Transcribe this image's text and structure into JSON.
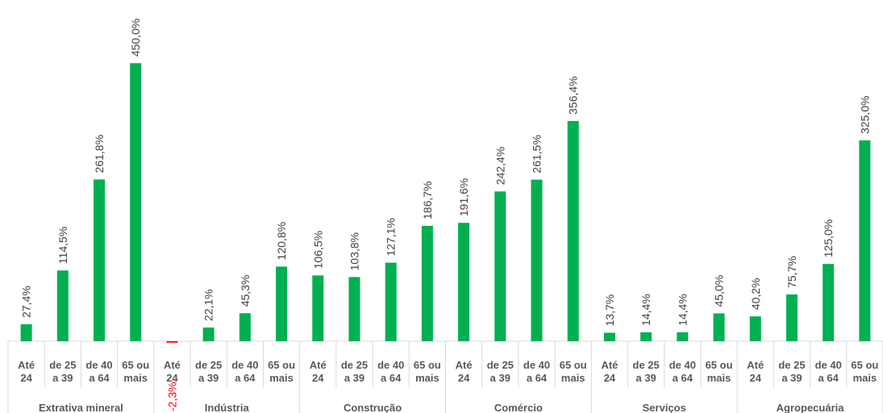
{
  "chart_data": {
    "type": "bar",
    "groups": [
      "Extrativa mineral",
      "Indústria",
      "Construção",
      "Comércio",
      "Serviços",
      "Agropecuária"
    ],
    "categories": [
      [
        "Até",
        "24"
      ],
      [
        "de 25",
        "a 39"
      ],
      [
        "de 40",
        "a 64"
      ],
      [
        "65 ou",
        "mais"
      ],
      [
        "Até",
        "24"
      ],
      [
        "de 25",
        "a 39"
      ],
      [
        "de 40",
        "a 64"
      ],
      [
        "65 ou",
        "mais"
      ],
      [
        "Até",
        "24"
      ],
      [
        "de 25",
        "a 39"
      ],
      [
        "de 40",
        "a 64"
      ],
      [
        "65 ou",
        "mais"
      ],
      [
        "Até",
        "24"
      ],
      [
        "de 25",
        "a 39"
      ],
      [
        "de 40",
        "a 64"
      ],
      [
        "65 ou",
        "mais"
      ],
      [
        "Até",
        "24"
      ],
      [
        "de 25",
        "a 39"
      ],
      [
        "de 40",
        "a 64"
      ],
      [
        "65 ou",
        "mais"
      ],
      [
        "Até",
        "24"
      ],
      [
        "de 25",
        "a 39"
      ],
      [
        "de 40",
        "a 64"
      ],
      [
        "65 ou",
        "mais"
      ]
    ],
    "values": [
      27.4,
      114.5,
      261.8,
      450.0,
      -2.3,
      22.1,
      45.3,
      120.8,
      106.5,
      103.8,
      127.1,
      186.7,
      191.6,
      242.4,
      261.5,
      356.4,
      13.7,
      14.4,
      14.4,
      45.0,
      40.2,
      75.7,
      125.0,
      325.0
    ],
    "value_labels": [
      "27,4%",
      "114,5%",
      "261,8%",
      "450,0%",
      "-2,3%",
      "22,1%",
      "45,3%",
      "120,8%",
      "106,5%",
      "103,8%",
      "127,1%",
      "186,7%",
      "191,6%",
      "242,4%",
      "261,5%",
      "356,4%",
      "13,7%",
      "14,4%",
      "14,4%",
      "45,0%",
      "40,2%",
      "75,7%",
      "125,0%",
      "325,0%"
    ],
    "color": "#00b050",
    "negative_color": "#ff0000",
    "ylim": [
      0,
      500
    ]
  }
}
